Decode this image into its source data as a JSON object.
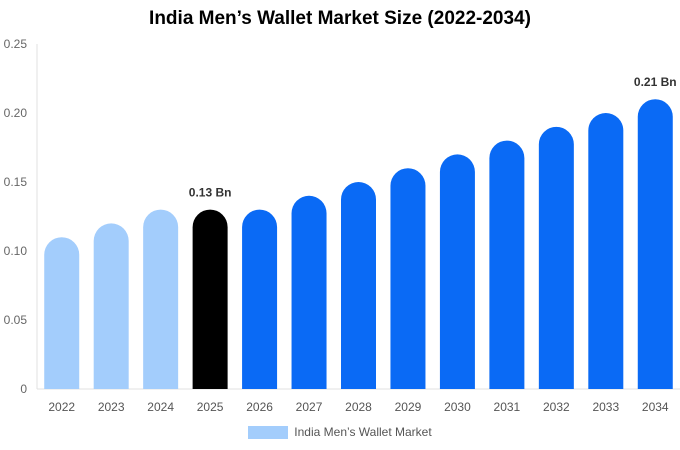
{
  "chart_data": {
    "type": "bar",
    "title": "India Men’s Wallet Market Size (2022-2034)",
    "categories": [
      "2022",
      "2023",
      "2024",
      "2025",
      "2026",
      "2027",
      "2028",
      "2029",
      "2030",
      "2031",
      "2032",
      "2033",
      "2034"
    ],
    "series": [
      {
        "name": "India Men’s Wallet Market",
        "values": [
          0.11,
          0.12,
          0.13,
          0.13,
          0.13,
          0.14,
          0.15,
          0.16,
          0.17,
          0.18,
          0.19,
          0.2,
          0.21
        ]
      }
    ],
    "ylim": [
      0,
      0.25
    ],
    "yticks": [
      "0",
      "0.05",
      "0.10",
      "0.15",
      "0.20",
      "0.25"
    ],
    "annotations": [
      {
        "category": "2025",
        "text": "0.13 Bn"
      },
      {
        "category": "2034",
        "text": "0.21 Bn"
      }
    ],
    "bar_colors": {
      "historical": "#a3cdfc",
      "base_year": "#000000",
      "forecast": "#0a6af5"
    },
    "base_year": "2025",
    "legend_color": "#a3cdfc",
    "grid": false,
    "legend_position": "bottom"
  }
}
